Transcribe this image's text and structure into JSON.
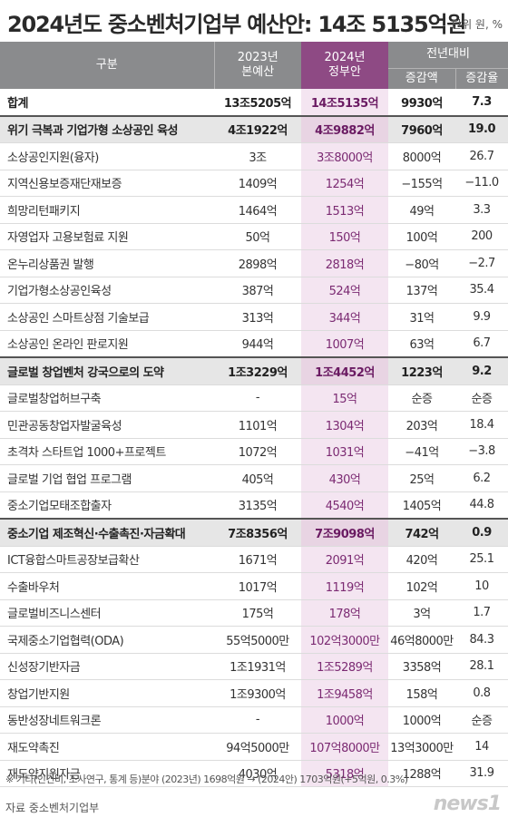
{
  "title": "2024년도 중소벤처기업부 예산안: 14조 5135억원",
  "unit": "단위 원, %",
  "header": {
    "category": "구분",
    "col2023_line1": "2023년",
    "col2023_line2": "본예산",
    "col2024_line1": "2024년",
    "col2024_line2": "정부안",
    "change": "전년대비",
    "change_amount": "증감액",
    "change_rate": "증감율"
  },
  "rows": [
    {
      "label": "합계",
      "v2023": "13조5205억",
      "v2024": "14조5135억",
      "diff": "9930억",
      "rate": "7.3",
      "type": "total"
    },
    {
      "label": "위기 극복과 기업가형 소상공인 육성",
      "v2023": "4조1922억",
      "v2024": "4조9882억",
      "diff": "7960억",
      "rate": "19.0",
      "type": "section"
    },
    {
      "label": "소상공인지원(융자)",
      "v2023": "3조",
      "v2024": "3조8000억",
      "diff": "8000억",
      "rate": "26.7",
      "type": "item"
    },
    {
      "label": "지역신용보증재단재보증",
      "v2023": "1409억",
      "v2024": "1254억",
      "diff": "−155억",
      "rate": "−11.0",
      "type": "item"
    },
    {
      "label": "희망리턴패키지",
      "v2023": "1464억",
      "v2024": "1513억",
      "diff": "49억",
      "rate": "3.3",
      "type": "item"
    },
    {
      "label": "자영업자 고용보험료 지원",
      "v2023": "50억",
      "v2024": "150억",
      "diff": "100억",
      "rate": "200",
      "type": "item"
    },
    {
      "label": "온누리상품권 발행",
      "v2023": "2898억",
      "v2024": "2818억",
      "diff": "−80억",
      "rate": "−2.7",
      "type": "item"
    },
    {
      "label": "기업가형소상공인육성",
      "v2023": "387억",
      "v2024": "524억",
      "diff": "137억",
      "rate": "35.4",
      "type": "item"
    },
    {
      "label": "소상공인 스마트상점 기술보급",
      "v2023": "313억",
      "v2024": "344억",
      "diff": "31억",
      "rate": "9.9",
      "type": "item"
    },
    {
      "label": "소상공인 온라인 판로지원",
      "v2023": "944억",
      "v2024": "1007억",
      "diff": "63억",
      "rate": "6.7",
      "type": "item"
    },
    {
      "label": "글로벌 창업벤처 강국으로의 도약",
      "v2023": "1조3229억",
      "v2024": "1조4452억",
      "diff": "1223억",
      "rate": "9.2",
      "type": "section"
    },
    {
      "label": "글로벌창업허브구축",
      "v2023": "-",
      "v2024": "15억",
      "diff": "순증",
      "rate": "순증",
      "type": "item"
    },
    {
      "label": "민관공동창업자발굴육성",
      "v2023": "1101억",
      "v2024": "1304억",
      "diff": "203억",
      "rate": "18.4",
      "type": "item"
    },
    {
      "label": "초격차 스타트업 1000+프로젝트",
      "v2023": "1072억",
      "v2024": "1031억",
      "diff": "−41억",
      "rate": "−3.8",
      "type": "item"
    },
    {
      "label": "글로벌 기업 협업 프로그램",
      "v2023": "405억",
      "v2024": "430억",
      "diff": "25억",
      "rate": "6.2",
      "type": "item"
    },
    {
      "label": "중소기업모태조합출자",
      "v2023": "3135억",
      "v2024": "4540억",
      "diff": "1405억",
      "rate": "44.8",
      "type": "item"
    },
    {
      "label": "중소기업 제조혁신·수출촉진·자금확대",
      "v2023": "7조8356억",
      "v2024": "7조9098억",
      "diff": "742억",
      "rate": "0.9",
      "type": "section"
    },
    {
      "label": "ICT융합스마트공장보급확산",
      "v2023": "1671억",
      "v2024": "2091억",
      "diff": "420억",
      "rate": "25.1",
      "type": "item"
    },
    {
      "label": "수출바우처",
      "v2023": "1017억",
      "v2024": "1119억",
      "diff": "102억",
      "rate": "10",
      "type": "item"
    },
    {
      "label": "글로벌비즈니스센터",
      "v2023": "175억",
      "v2024": "178억",
      "diff": "3억",
      "rate": "1.7",
      "type": "item"
    },
    {
      "label": "국제중소기업협력(ODA)",
      "v2023": "55억5000만",
      "v2024": "102억3000만",
      "diff": "46억8000만",
      "rate": "84.3",
      "type": "item"
    },
    {
      "label": "신성장기반자금",
      "v2023": "1조1931억",
      "v2024": "1조5289억",
      "diff": "3358억",
      "rate": "28.1",
      "type": "item"
    },
    {
      "label": "창업기반지원",
      "v2023": "1조9300억",
      "v2024": "1조9458억",
      "diff": "158억",
      "rate": "0.8",
      "type": "item"
    },
    {
      "label": "동반성장네트워크론",
      "v2023": "-",
      "v2024": "1000억",
      "diff": "1000억",
      "rate": "순증",
      "type": "item"
    },
    {
      "label": "재도약촉진",
      "v2023": "94억5000만",
      "v2024": "107억8000만",
      "diff": "13억3000만",
      "rate": "14",
      "type": "item"
    },
    {
      "label": "재도약지원자금",
      "v2023": "4030억",
      "v2024": "5318억",
      "diff": "1288억",
      "rate": "31.9",
      "type": "item"
    }
  ],
  "footnote": "※ 기타(인건비, 조사연구, 통계 등)분야 (2023년) 1698억원 → (2024안) 1703억원(+5억원, 0.3%)",
  "source": "자료  중소벤처기업부",
  "logo": "news1"
}
